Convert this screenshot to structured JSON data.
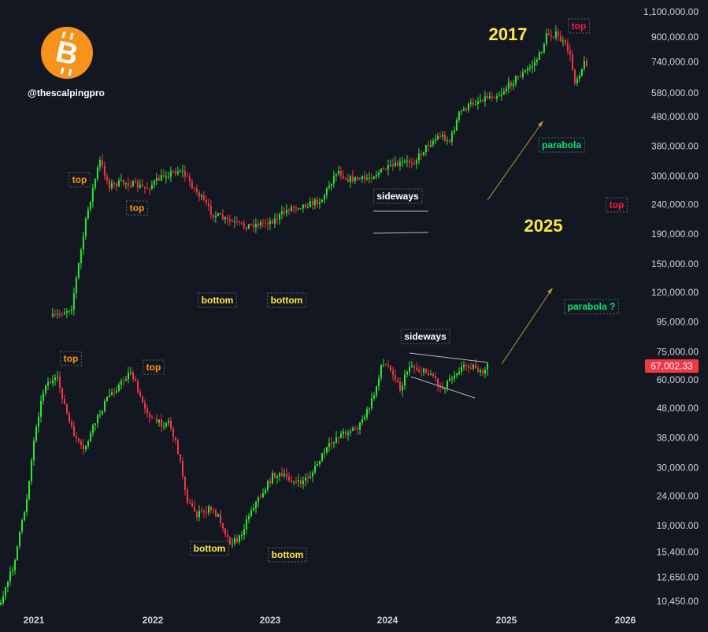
{
  "branding": {
    "handle": "@thescalpingpro",
    "logo_icon": "bitcoin-logo-icon",
    "logo_color": "#f7931a"
  },
  "chart_data": {
    "type": "candlestick",
    "title": "",
    "y_axis": {
      "scale": "log",
      "position": "right",
      "range": [
        10000,
        1150000
      ],
      "tick_labels": [
        "1,100,000.00",
        "900,000.00",
        "740,000.00",
        "580,000.00",
        "480,000.00",
        "380,000.00",
        "300,000.00",
        "240,000.00",
        "190,000.00",
        "150,000.00",
        "120,000.00",
        "95,000.00",
        "75,000.00",
        "60,000.00",
        "48,000.00",
        "38,000.00",
        "30,000.00",
        "24,000.00",
        "19,000.00",
        "15,400.00",
        "12,650.00",
        "10,450.00"
      ],
      "tick_values": [
        1100000,
        900000,
        740000,
        580000,
        480000,
        380000,
        300000,
        240000,
        190000,
        150000,
        120000,
        95000,
        75000,
        60000,
        48000,
        38000,
        30000,
        24000,
        19000,
        15400,
        12650,
        10450
      ]
    },
    "x_axis": {
      "tick_labels": [
        "2021",
        "2022",
        "2023",
        "2024",
        "2025",
        "2026"
      ],
      "range": [
        "2020-11-15",
        "2026-02-01"
      ]
    },
    "grid": false,
    "last_price": {
      "label": "67,002.33",
      "value": 67002.33,
      "color": "#f23645"
    },
    "colors": {
      "up": "#2ee62e",
      "down": "#f23645"
    },
    "series": [
      {
        "role": "2017-cycle fractal (projected, plotted scaled)",
        "points": [
          [
            0.02,
            0.505
          ],
          [
            0.05,
            0.49
          ],
          [
            0.075,
            0.34
          ],
          [
            0.095,
            0.255
          ],
          [
            0.11,
            0.295
          ],
          [
            0.135,
            0.29
          ],
          [
            0.17,
            0.3
          ],
          [
            0.2,
            0.278
          ],
          [
            0.225,
            0.27
          ],
          [
            0.25,
            0.305
          ],
          [
            0.275,
            0.34
          ],
          [
            0.3,
            0.352
          ],
          [
            0.325,
            0.36
          ],
          [
            0.35,
            0.356
          ],
          [
            0.375,
            0.35
          ],
          [
            0.4,
            0.33
          ],
          [
            0.43,
            0.325
          ],
          [
            0.45,
            0.318
          ],
          [
            0.475,
            0.27
          ],
          [
            0.49,
            0.285
          ],
          [
            0.52,
            0.285
          ],
          [
            0.55,
            0.27
          ],
          [
            0.58,
            0.26
          ],
          [
            0.6,
            0.255
          ],
          [
            0.62,
            0.23
          ],
          [
            0.64,
            0.215
          ],
          [
            0.655,
            0.225
          ],
          [
            0.67,
            0.18
          ],
          [
            0.69,
            0.165
          ],
          [
            0.71,
            0.155
          ],
          [
            0.735,
            0.15
          ],
          [
            0.76,
            0.125
          ],
          [
            0.775,
            0.115
          ],
          [
            0.79,
            0.1
          ],
          [
            0.8,
            0.085
          ],
          [
            0.81,
            0.055
          ],
          [
            0.825,
            0.055
          ],
          [
            0.845,
            0.08
          ],
          [
            0.855,
            0.13
          ],
          [
            0.87,
            0.1
          ],
          [
            0.875,
            0.1
          ]
        ]
      },
      {
        "role": "BTC 2021-2025 actual",
        "points": [
          [
            0.0,
            0.96
          ],
          [
            0.02,
            0.9
          ],
          [
            0.04,
            0.8
          ],
          [
            0.055,
            0.68
          ],
          [
            0.07,
            0.61
          ],
          [
            0.09,
            0.605
          ],
          [
            0.11,
            0.68
          ],
          [
            0.13,
            0.72
          ],
          [
            0.15,
            0.67
          ],
          [
            0.17,
            0.63
          ],
          [
            0.19,
            0.61
          ],
          [
            0.205,
            0.59
          ],
          [
            0.22,
            0.635
          ],
          [
            0.24,
            0.67
          ],
          [
            0.255,
            0.675
          ],
          [
            0.265,
            0.67
          ],
          [
            0.28,
            0.72
          ],
          [
            0.295,
            0.8
          ],
          [
            0.31,
            0.82
          ],
          [
            0.33,
            0.81
          ],
          [
            0.345,
            0.825
          ],
          [
            0.36,
            0.862
          ],
          [
            0.375,
            0.86
          ],
          [
            0.395,
            0.81
          ],
          [
            0.41,
            0.79
          ],
          [
            0.43,
            0.755
          ],
          [
            0.45,
            0.76
          ],
          [
            0.47,
            0.77
          ],
          [
            0.49,
            0.755
          ],
          [
            0.51,
            0.72
          ],
          [
            0.53,
            0.695
          ],
          [
            0.55,
            0.685
          ],
          [
            0.565,
            0.68
          ],
          [
            0.58,
            0.65
          ],
          [
            0.59,
            0.625
          ],
          [
            0.6,
            0.58
          ],
          [
            0.615,
            0.585
          ],
          [
            0.63,
            0.62
          ],
          [
            0.645,
            0.58
          ],
          [
            0.66,
            0.59
          ],
          [
            0.68,
            0.595
          ],
          [
            0.695,
            0.62
          ],
          [
            0.71,
            0.6
          ],
          [
            0.72,
            0.59
          ],
          [
            0.735,
            0.58
          ],
          [
            0.75,
            0.585
          ],
          [
            0.76,
            0.6
          ],
          [
            0.77,
            0.575
          ]
        ]
      }
    ],
    "annotations": [
      {
        "text": "top",
        "color": "#ff9800",
        "box": true
      },
      {
        "text": "top",
        "color": "#ff9800",
        "box": true
      },
      {
        "text": "top",
        "color": "#ff1744",
        "box": true
      },
      {
        "text": "top",
        "color": "#ff1744",
        "box": true
      },
      {
        "text": "top",
        "color": "#ff9800",
        "box": true
      },
      {
        "text": "top",
        "color": "#ff9800",
        "box": true
      },
      {
        "text": "bottom",
        "color": "#ffeb3b",
        "box": true
      },
      {
        "text": "bottom",
        "color": "#ffeb3b",
        "box": true
      },
      {
        "text": "bottom",
        "color": "#ffeb3b",
        "box": true
      },
      {
        "text": "bottom",
        "color": "#ffeb3b",
        "box": true
      },
      {
        "text": "sideways",
        "color": "#ffffff",
        "box": true
      },
      {
        "text": "sideways",
        "color": "#ffffff",
        "box": true
      },
      {
        "text": "parabola",
        "color": "#00e676",
        "box": true
      },
      {
        "text": "parabola ?",
        "color": "#00e676",
        "box": true
      },
      {
        "text": "2017",
        "color": "#ffeb3b",
        "box": false
      },
      {
        "text": "2025",
        "color": "#ffeb3b",
        "box": false
      }
    ]
  }
}
